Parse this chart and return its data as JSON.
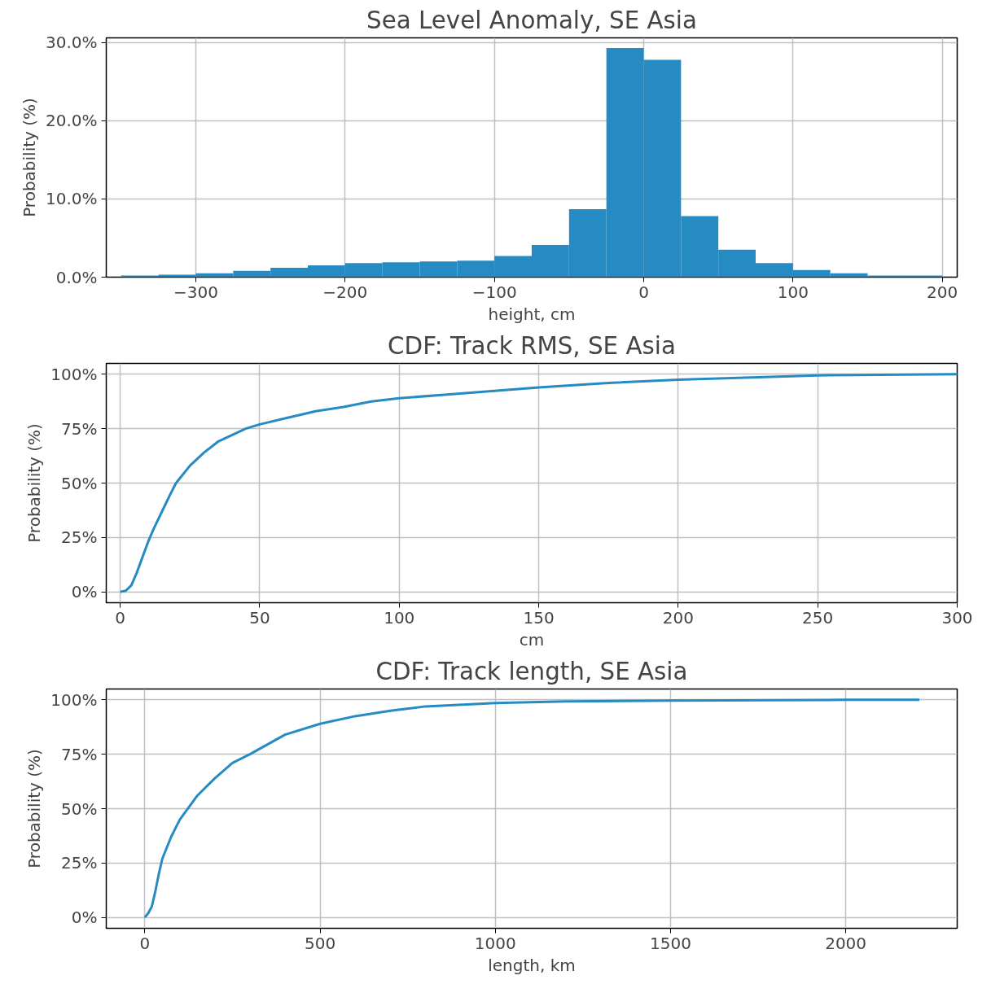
{
  "chart_data": [
    {
      "type": "histogram",
      "title": "Sea Level Anomaly, SE Asia",
      "xlabel": "height, cm",
      "ylabel": "Probability (%)",
      "color": "#268bc3",
      "grid": true,
      "bins": [
        -350,
        -325,
        -300,
        -275,
        -250,
        -225,
        -200,
        -175,
        -150,
        -125,
        -100,
        -75,
        -50,
        -25,
        0,
        25,
        50,
        75,
        100,
        125,
        150,
        175,
        200
      ],
      "values": [
        0.2,
        0.3,
        0.5,
        0.8,
        1.2,
        1.5,
        1.8,
        1.9,
        2.0,
        2.1,
        2.7,
        4.1,
        8.7,
        29.3,
        27.8,
        7.8,
        3.5,
        1.8,
        0.9,
        0.5,
        0.2,
        0.2
      ],
      "xlim": [
        -360,
        210
      ],
      "xticks": [
        {
          "value": -300,
          "label": "−300"
        },
        {
          "value": -200,
          "label": "−200"
        },
        {
          "value": -100,
          "label": "−100"
        },
        0,
        100,
        200
      ],
      "ylim": [
        0,
        30.6
      ],
      "yticks": [
        {
          "value": 0,
          "label": "0.0%"
        },
        {
          "value": 10,
          "label": "10.0%"
        },
        {
          "value": 20,
          "label": "20.0%"
        },
        {
          "value": 30,
          "label": "30.0%"
        }
      ]
    },
    {
      "type": "line",
      "title": "CDF: Track RMS, SE Asia",
      "xlabel": "cm",
      "ylabel": "Probability (%)",
      "grid": true,
      "series": [
        {
          "color": "#268bc3",
          "x": [
            0,
            2,
            4,
            6,
            8,
            10,
            12,
            15,
            18,
            20,
            25,
            30,
            35,
            40,
            45,
            50,
            60,
            70,
            80,
            90,
            100,
            120,
            150,
            175,
            200,
            250,
            300
          ],
          "values": [
            0,
            0.5,
            3,
            9,
            16,
            23,
            29,
            37,
            45,
            50,
            58,
            64,
            69,
            72,
            75,
            77,
            80,
            83,
            85,
            87.5,
            89,
            91,
            94,
            96,
            97.5,
            99.5,
            100
          ]
        }
      ],
      "xlim": [
        -5,
        300
      ],
      "xticks": [
        0,
        50,
        100,
        150,
        200,
        250,
        300
      ],
      "ylim": [
        -5,
        105
      ],
      "yticks": [
        {
          "value": 0,
          "label": "0%"
        },
        {
          "value": 25,
          "label": "25%"
        },
        {
          "value": 50,
          "label": "50%"
        },
        {
          "value": 75,
          "label": "75%"
        },
        {
          "value": 100,
          "label": "100%"
        }
      ]
    },
    {
      "type": "line",
      "title": "CDF: Track length, SE Asia",
      "xlabel": "length, km",
      "ylabel": "Probability (%)",
      "grid": true,
      "series": [
        {
          "color": "#268bc3",
          "x": [
            0,
            10,
            20,
            30,
            40,
            50,
            75,
            100,
            150,
            200,
            250,
            300,
            400,
            500,
            600,
            700,
            800,
            1000,
            1200,
            1500,
            2000,
            2210
          ],
          "values": [
            0,
            2,
            5,
            12,
            20,
            27,
            37,
            45,
            56,
            64,
            71,
            75,
            84,
            89,
            92.5,
            95,
            97,
            98.5,
            99.3,
            99.7,
            100,
            100
          ]
        }
      ],
      "xlim": [
        -110,
        2318
      ],
      "xticks": [
        0,
        500,
        1000,
        1500,
        2000
      ],
      "ylim": [
        -5,
        105
      ],
      "yticks": [
        {
          "value": 0,
          "label": "0%"
        },
        {
          "value": 25,
          "label": "25%"
        },
        {
          "value": 50,
          "label": "50%"
        },
        {
          "value": 75,
          "label": "75%"
        },
        {
          "value": 100,
          "label": "100%"
        }
      ]
    }
  ]
}
